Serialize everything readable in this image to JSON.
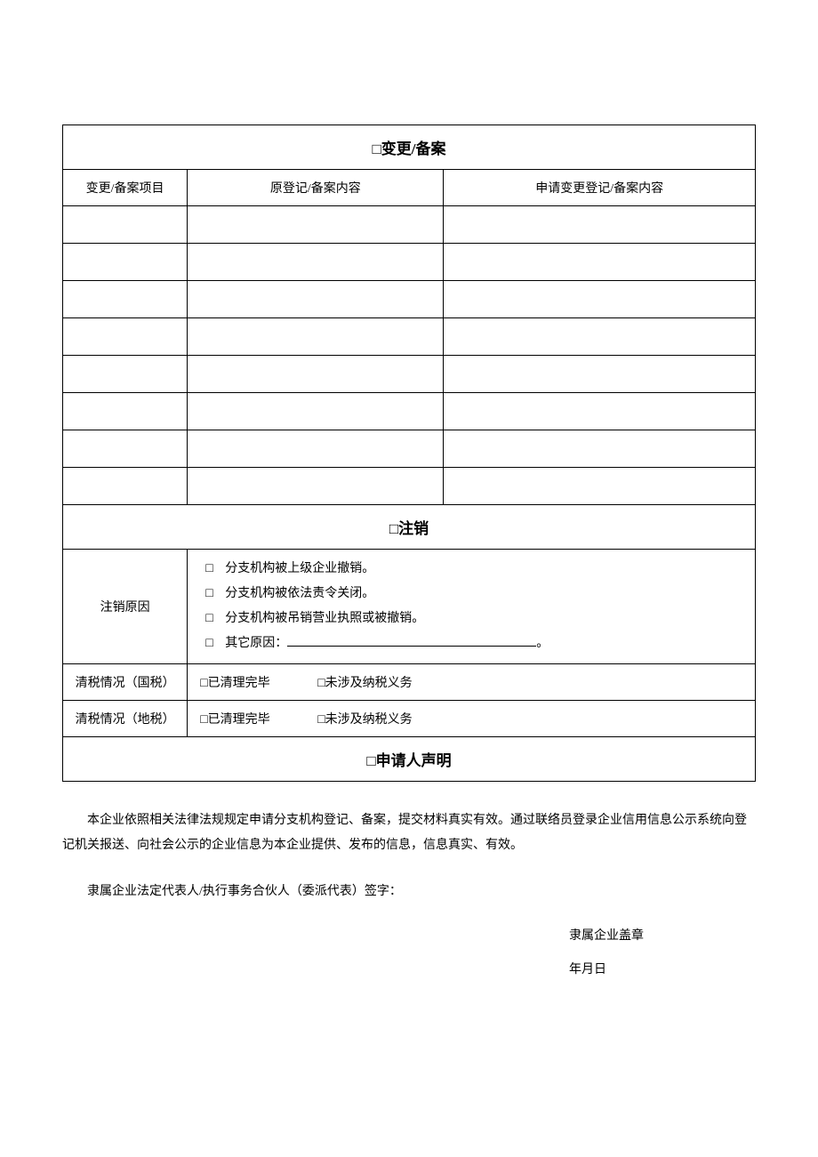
{
  "section_change": {
    "title": "□变更/备案",
    "columns": {
      "item": "变更/备案项目",
      "original": "原登记/备案内容",
      "requested": "申请变更登记/备案内容"
    },
    "row_count": 8
  },
  "section_cancel": {
    "title": "□注销",
    "reason_label": "注销原因",
    "reason_options": {
      "opt1": "分支机构被上级企业撤销。",
      "opt2": "分支机构被依法责令关闭。",
      "opt3": "分支机构被吊销营业执照或被撤销。",
      "opt4_prefix": "其它原因：",
      "opt4_suffix": "。"
    },
    "tax_national_label": "清税情况（国税）",
    "tax_local_label": "清税情况（地税）",
    "tax_option_done": "□已清理完毕",
    "tax_option_none": "□未涉及纳税义务"
  },
  "section_declare": {
    "title": "□申请人声明",
    "body": "本企业依照相关法律法规规定申请分支机构登记、备案，提交材料真实有效。通过联络员登录企业信用信息公示系统向登记机关报送、向社会公示的企业信息为本企业提供、发布的信息，信息真实、有效。",
    "signature": "隶属企业法定代表人/执行事务合伙人（委派代表）签字：",
    "stamp": "隶属企业盖章",
    "date": "年月日"
  },
  "checkbox_glyph": "□",
  "styling": {
    "page_background": "#ffffff",
    "text_color": "#000000",
    "border_color": "#000000",
    "header_fontsize": 17,
    "body_fontsize": 14,
    "font_family": "SimSun"
  }
}
